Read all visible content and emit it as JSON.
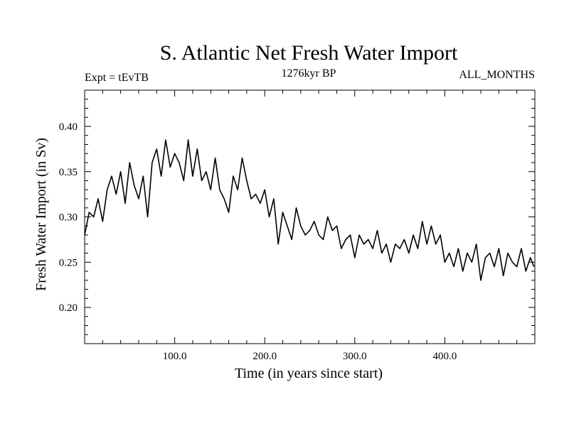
{
  "chart_data": {
    "type": "line",
    "title": "S. Atlantic Net Fresh Water Import",
    "subtitle_left": "Expt = tEvTB",
    "subtitle_center": "1276kyr BP",
    "subtitle_right": "ALL_MONTHS",
    "xlabel": "Time (in years since start)",
    "ylabel": "Fresh Water Import (in Sv)",
    "xlim": [
      0,
      500
    ],
    "ylim": [
      0.16,
      0.44
    ],
    "xticks": [
      100,
      200,
      300,
      400
    ],
    "xtick_labels": [
      "100.0",
      "200.0",
      "300.0",
      "400.0"
    ],
    "yticks": [
      0.2,
      0.25,
      0.3,
      0.35,
      0.4
    ],
    "ytick_labels": [
      "0.20",
      "0.25",
      "0.30",
      "0.35",
      "0.40"
    ],
    "grid": false,
    "series": [
      {
        "name": "net fresh water import",
        "x": [
          0,
          5,
          10,
          15,
          20,
          25,
          30,
          35,
          40,
          45,
          50,
          55,
          60,
          65,
          70,
          75,
          80,
          85,
          90,
          95,
          100,
          105,
          110,
          115,
          120,
          125,
          130,
          135,
          140,
          145,
          150,
          155,
          160,
          165,
          170,
          175,
          180,
          185,
          190,
          195,
          200,
          205,
          210,
          215,
          220,
          225,
          230,
          235,
          240,
          245,
          250,
          255,
          260,
          265,
          270,
          275,
          280,
          285,
          290,
          295,
          300,
          305,
          310,
          315,
          320,
          325,
          330,
          335,
          340,
          345,
          350,
          355,
          360,
          365,
          370,
          375,
          380,
          385,
          390,
          395,
          400,
          405,
          410,
          415,
          420,
          425,
          430,
          435,
          440,
          445,
          450,
          455,
          460,
          465,
          470,
          475,
          480,
          485,
          490,
          495,
          499
        ],
        "values": [
          0.28,
          0.305,
          0.3,
          0.32,
          0.295,
          0.33,
          0.345,
          0.325,
          0.35,
          0.315,
          0.36,
          0.335,
          0.32,
          0.345,
          0.3,
          0.36,
          0.375,
          0.345,
          0.385,
          0.355,
          0.37,
          0.36,
          0.34,
          0.385,
          0.345,
          0.375,
          0.34,
          0.35,
          0.33,
          0.365,
          0.33,
          0.32,
          0.305,
          0.345,
          0.33,
          0.365,
          0.34,
          0.32,
          0.325,
          0.315,
          0.33,
          0.3,
          0.32,
          0.27,
          0.305,
          0.29,
          0.275,
          0.31,
          0.29,
          0.28,
          0.285,
          0.295,
          0.28,
          0.275,
          0.3,
          0.285,
          0.29,
          0.265,
          0.275,
          0.28,
          0.255,
          0.28,
          0.27,
          0.275,
          0.265,
          0.285,
          0.26,
          0.27,
          0.25,
          0.27,
          0.265,
          0.275,
          0.26,
          0.28,
          0.265,
          0.295,
          0.27,
          0.29,
          0.27,
          0.28,
          0.25,
          0.26,
          0.245,
          0.265,
          0.24,
          0.26,
          0.25,
          0.27,
          0.23,
          0.255,
          0.26,
          0.245,
          0.265,
          0.235,
          0.26,
          0.25,
          0.245,
          0.265,
          0.24,
          0.255,
          0.245
        ]
      }
    ]
  }
}
